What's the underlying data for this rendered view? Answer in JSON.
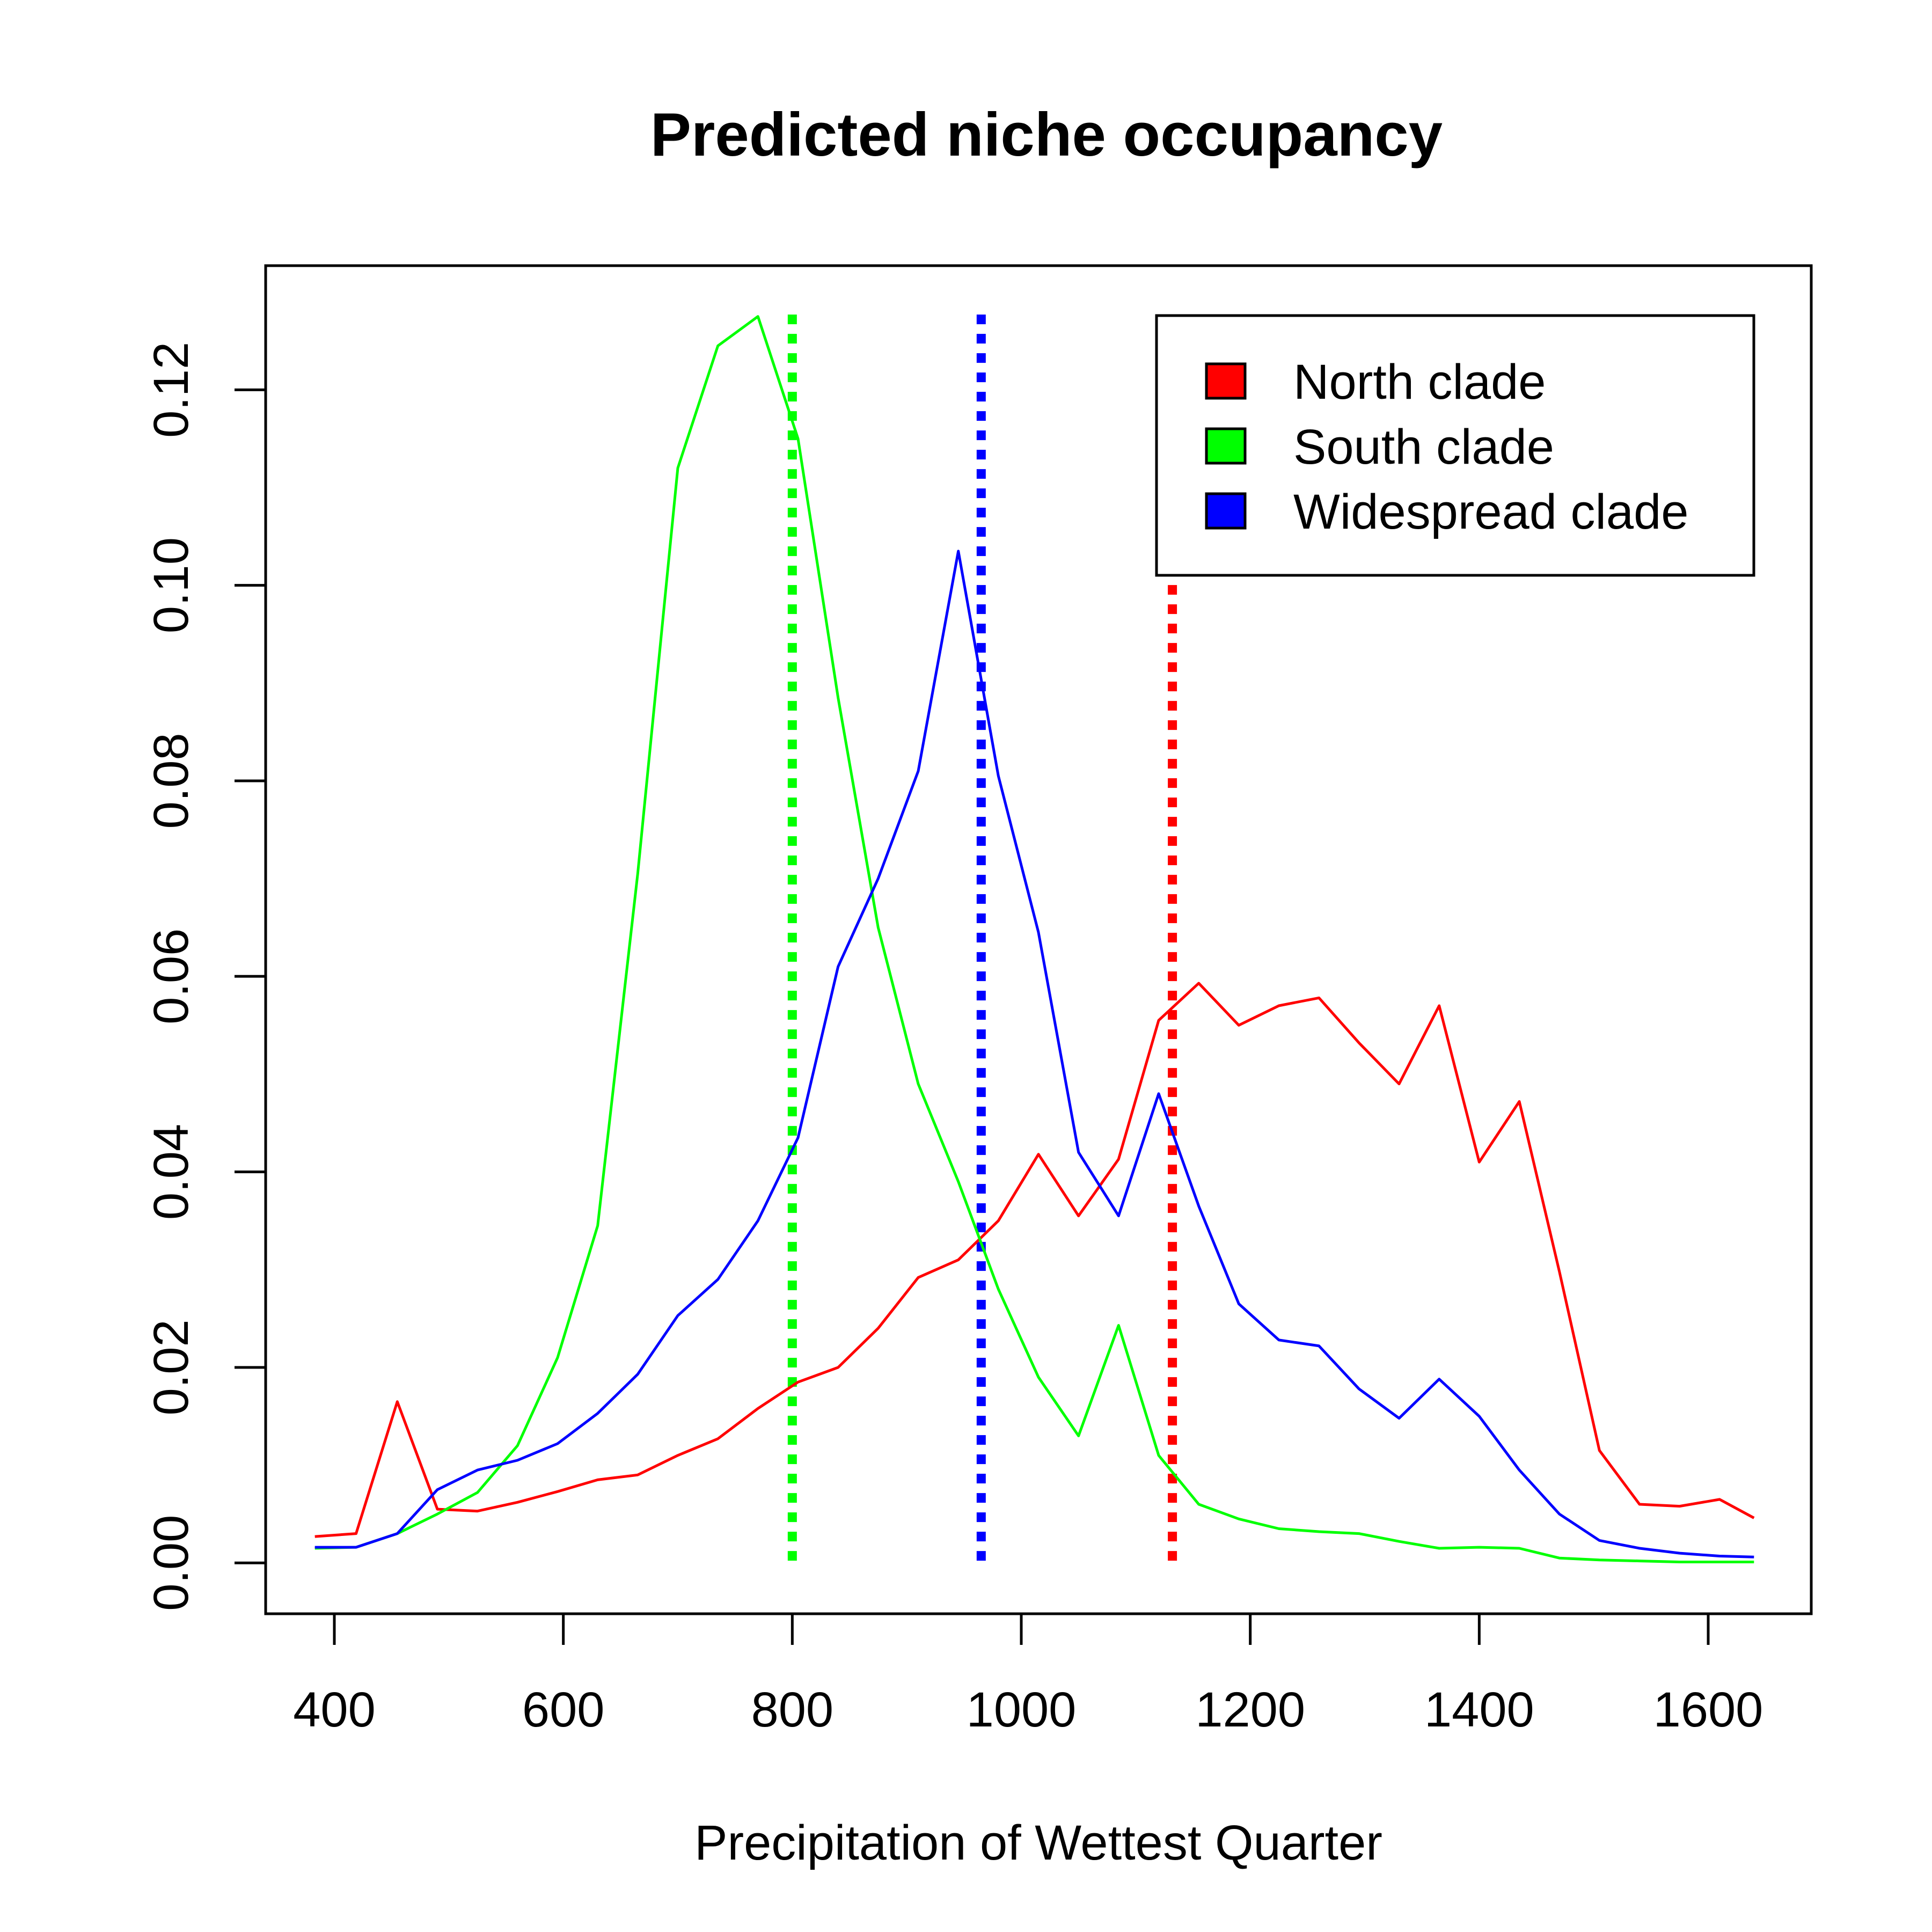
{
  "chart_data": {
    "type": "line",
    "title": "Predicted niche occupancy",
    "xlabel": "Precipitation of Wettest Quarter",
    "ylabel": "",
    "xlim": [
      340,
      1690
    ],
    "ylim": [
      -0.0052,
      0.1327
    ],
    "x_ticks": [
      400,
      600,
      800,
      1000,
      1200,
      1400,
      1600
    ],
    "x_tick_labels": [
      "400",
      "600",
      "800",
      "1000",
      "1200",
      "1400",
      "1600"
    ],
    "y_ticks": [
      0,
      0.02,
      0.04,
      0.06,
      0.08,
      0.1,
      0.12
    ],
    "y_tick_labels": [
      "0.00",
      "0.02",
      "0.04",
      "0.06",
      "0.08",
      "0.10",
      "0.12"
    ],
    "grid": false,
    "legend_position": "top-right",
    "x": [
      383,
      419,
      455,
      490,
      525,
      560,
      595,
      630,
      665,
      700,
      735,
      770,
      805,
      840,
      875,
      910,
      945,
      980,
      1015,
      1050,
      1085,
      1120,
      1155,
      1190,
      1225,
      1260,
      1295,
      1330,
      1365,
      1400,
      1435,
      1470,
      1505,
      1540,
      1575,
      1610,
      1640
    ],
    "series": [
      {
        "name": "North clade",
        "color": "#ff0000",
        "values": [
          0.0027,
          0.003,
          0.0165,
          0.0055,
          0.0053,
          0.0062,
          0.0073,
          0.0085,
          0.009,
          0.011,
          0.0127,
          0.0158,
          0.0185,
          0.02,
          0.024,
          0.0292,
          0.031,
          0.035,
          0.0418,
          0.0355,
          0.0413,
          0.0555,
          0.0593,
          0.055,
          0.057,
          0.0578,
          0.0532,
          0.049,
          0.057,
          0.041,
          0.0472,
          0.0298,
          0.0115,
          0.006,
          0.0058,
          0.0065,
          0.0046
        ]
      },
      {
        "name": "South clade",
        "color": "#00ff00",
        "values": [
          0.0015,
          0.0016,
          0.003,
          0.005,
          0.0072,
          0.012,
          0.021,
          0.0345,
          0.0705,
          0.112,
          0.1245,
          0.1275,
          0.115,
          0.0885,
          0.065,
          0.049,
          0.039,
          0.028,
          0.019,
          0.013,
          0.0243,
          0.011,
          0.006,
          0.0045,
          0.0035,
          0.0032,
          0.003,
          0.0022,
          0.0015,
          0.0016,
          0.0015,
          0.0005,
          0.0003,
          0.0002,
          0.0001,
          0.0001,
          0.0001
        ]
      },
      {
        "name": "Widespread clade",
        "color": "#0000ff",
        "values": [
          0.0016,
          0.0016,
          0.003,
          0.0075,
          0.0095,
          0.0105,
          0.0122,
          0.0153,
          0.0193,
          0.0253,
          0.029,
          0.035,
          0.0435,
          0.061,
          0.07,
          0.081,
          0.1035,
          0.0805,
          0.0645,
          0.042,
          0.0355,
          0.048,
          0.0365,
          0.0265,
          0.0228,
          0.0222,
          0.0178,
          0.0148,
          0.0188,
          0.015,
          0.0095,
          0.005,
          0.0023,
          0.0015,
          0.001,
          0.0007,
          0.0006
        ]
      }
    ],
    "reference_lines": [
      {
        "series": "South clade",
        "x": 800,
        "color": "#00ff00",
        "style": "dotted"
      },
      {
        "series": "Widespread clade",
        "x": 965,
        "color": "#0000ff",
        "style": "dotted"
      },
      {
        "series": "North clade",
        "x": 1132,
        "color": "#ff0000",
        "style": "dotted"
      }
    ]
  }
}
